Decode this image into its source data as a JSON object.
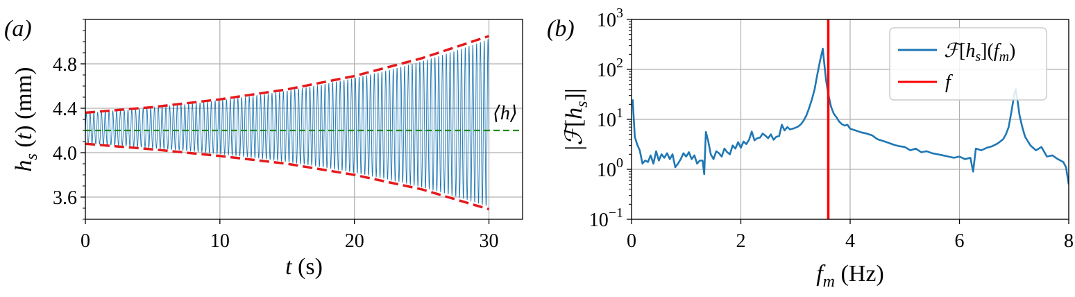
{
  "chart_data": [
    {
      "panel": "(a)",
      "type": "line",
      "xlabel": "t (s)",
      "ylabel": "h_s (t) (mm)",
      "xlim": [
        0,
        32.5
      ],
      "ylim": [
        3.4,
        5.2
      ],
      "xticks": [
        0,
        10,
        20,
        30
      ],
      "yticks": [
        3.6,
        4.0,
        4.4,
        4.8
      ],
      "xtick_labels": [
        "0",
        "10",
        "20",
        "30"
      ],
      "ytick_labels": [
        "3.6",
        "4.0",
        "4.4",
        "4.8"
      ],
      "grid": true,
      "mean_label": "⟨h⟩",
      "series": [
        {
          "kind": "signal",
          "color": "#1f77b4",
          "t_range": [
            0,
            30
          ],
          "frequency_hz": 3.55,
          "mean": 4.2,
          "envelope_upper_start": 4.36,
          "envelope_upper_end": 5.05,
          "envelope_lower_start": 4.08,
          "envelope_lower_end": 3.49
        },
        {
          "kind": "envelope-upper",
          "color": "#e41a1c",
          "style": "dashed",
          "x": [
            0,
            5,
            10,
            15,
            20,
            25,
            30
          ],
          "y": [
            4.36,
            4.41,
            4.48,
            4.57,
            4.69,
            4.85,
            5.05
          ]
        },
        {
          "kind": "envelope-lower",
          "color": "#e41a1c",
          "style": "dashed",
          "x": [
            0,
            5,
            10,
            15,
            20,
            25,
            30
          ],
          "y": [
            4.08,
            4.03,
            3.97,
            3.9,
            3.8,
            3.67,
            3.49
          ]
        },
        {
          "kind": "mean",
          "color": "#228b22",
          "style": "dashed",
          "x": [
            0,
            32.5
          ],
          "y": [
            4.2,
            4.2
          ]
        }
      ]
    },
    {
      "panel": "(b)",
      "type": "line",
      "xlabel": "f_m (Hz)",
      "ylabel": "|F[h_s]|",
      "yscale": "log",
      "xlim": [
        0,
        8
      ],
      "ylim": [
        0.1,
        1000
      ],
      "xticks": [
        0,
        2,
        4,
        6,
        8
      ],
      "xtick_labels": [
        "0",
        "2",
        "4",
        "6",
        "8"
      ],
      "ytick_exponents": [
        -1,
        0,
        1,
        2,
        3
      ],
      "grid": true,
      "legend_position": "top-right",
      "legend": [
        {
          "label": "F[h_s](f_m)",
          "color": "#1f77b4"
        },
        {
          "label": "f",
          "color": "#ff0000"
        }
      ],
      "series": [
        {
          "name": "F[h_s](f_m)",
          "color": "#1f77b4",
          "x": [
            0.02,
            0.06,
            0.1,
            0.15,
            0.2,
            0.25,
            0.3,
            0.35,
            0.4,
            0.45,
            0.5,
            0.55,
            0.6,
            0.65,
            0.7,
            0.75,
            0.8,
            0.85,
            0.9,
            0.95,
            1.0,
            1.05,
            1.1,
            1.15,
            1.2,
            1.25,
            1.3,
            1.33,
            1.36,
            1.4,
            1.45,
            1.5,
            1.55,
            1.6,
            1.65,
            1.7,
            1.75,
            1.8,
            1.85,
            1.9,
            1.95,
            2.0,
            2.05,
            2.1,
            2.15,
            2.2,
            2.25,
            2.3,
            2.35,
            2.4,
            2.45,
            2.5,
            2.55,
            2.6,
            2.65,
            2.7,
            2.75,
            2.8,
            2.85,
            2.9,
            2.95,
            3.0,
            3.05,
            3.1,
            3.15,
            3.2,
            3.25,
            3.3,
            3.35,
            3.4,
            3.45,
            3.5,
            3.53,
            3.56,
            3.6,
            3.65,
            3.7,
            3.75,
            3.8,
            3.85,
            3.9,
            3.95,
            4.0,
            4.1,
            4.2,
            4.3,
            4.4,
            4.5,
            4.6,
            4.7,
            4.8,
            4.9,
            5.0,
            5.1,
            5.2,
            5.3,
            5.4,
            5.5,
            5.6,
            5.7,
            5.8,
            5.9,
            6.0,
            6.1,
            6.2,
            6.25,
            6.3,
            6.4,
            6.5,
            6.6,
            6.7,
            6.8,
            6.85,
            6.9,
            6.95,
            7.0,
            7.03,
            7.06,
            7.1,
            7.15,
            7.2,
            7.3,
            7.4,
            7.5,
            7.6,
            7.7,
            7.8,
            7.9,
            7.95,
            8.0
          ],
          "y": [
            25,
            4.5,
            3.2,
            2.4,
            1.3,
            1.5,
            1.4,
            1.9,
            1.3,
            2.3,
            1.5,
            2.0,
            1.7,
            2.1,
            1.6,
            2.0,
            1.1,
            1.3,
            1.6,
            2.1,
            1.8,
            2.2,
            1.6,
            1.9,
            1.3,
            1.5,
            1.5,
            0.8,
            5.6,
            3.8,
            2.0,
            1.6,
            2.3,
            2.1,
            1.8,
            2.6,
            2.2,
            2.0,
            3.0,
            2.6,
            3.5,
            2.7,
            3.6,
            3.2,
            3.9,
            5.7,
            3.8,
            4.2,
            4.3,
            5.2,
            4.7,
            4.2,
            5.0,
            3.9,
            4.5,
            4.6,
            7.8,
            6.0,
            7.0,
            6.3,
            6.5,
            6.8,
            7.2,
            8.0,
            9.5,
            12,
            17,
            25,
            40,
            80,
            150,
            260,
            120,
            60,
            32,
            18,
            13,
            11,
            9.0,
            8.0,
            7.5,
            7.8,
            6.5,
            6.0,
            5.5,
            5.2,
            4.8,
            4.0,
            3.7,
            3.4,
            3.1,
            2.9,
            2.8,
            2.4,
            2.6,
            2.2,
            2.3,
            2.1,
            2.0,
            1.9,
            1.8,
            1.7,
            1.8,
            1.6,
            1.7,
            0.9,
            2.6,
            2.4,
            2.7,
            2.9,
            3.3,
            4.0,
            5.0,
            7.0,
            14,
            30,
            40,
            25,
            12,
            7,
            4.5,
            3.0,
            2.4,
            2.8,
            1.8,
            1.9,
            1.6,
            1.4,
            1.1,
            0.5
          ]
        },
        {
          "name": "f",
          "color": "#ff0000",
          "x_value": 3.6
        }
      ]
    }
  ]
}
